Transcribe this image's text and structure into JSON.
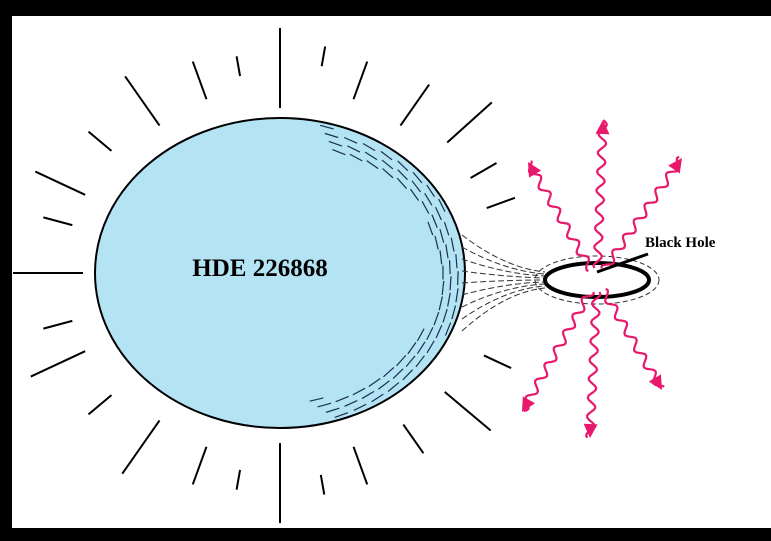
{
  "star": {
    "label": "HDE 226868"
  },
  "black_hole": {
    "label": "Black Hole"
  }
}
